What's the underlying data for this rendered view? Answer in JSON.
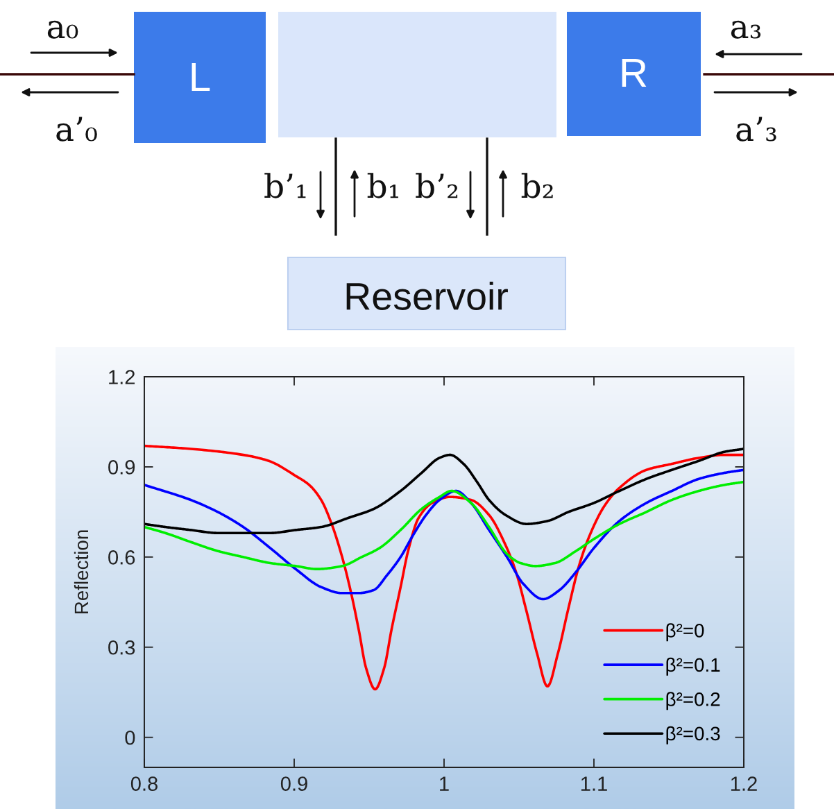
{
  "chart_data": [
    {
      "type": "other",
      "annotations": [
        "L",
        "R",
        "a₀",
        "a’₀",
        "a₃",
        "a’₃",
        "b’₁",
        "b₁",
        "b’₂",
        "b₂",
        "Reservoir"
      ]
    },
    {
      "type": "line",
      "ylabel": "Reflection",
      "xlim": [
        0.8,
        1.2
      ],
      "xticks": [
        0.8,
        0.9,
        1,
        1.1,
        1.2
      ],
      "ylim": [
        -0.1,
        1.2
      ],
      "yticks": [
        0,
        0.3,
        0.6,
        0.9,
        1.2
      ],
      "legend": "bottom right",
      "series": [
        {
          "name": "β²=0",
          "color": "#ff0000",
          "x": [
            0.8,
            0.831,
            0.866,
            0.883,
            0.901,
            0.91,
            0.918,
            0.925,
            0.932,
            0.938,
            0.943,
            0.948,
            0.954,
            0.96,
            0.965,
            0.971,
            0.976,
            0.983,
            0.992,
            1.004,
            1.018,
            1.03,
            1.041,
            1.048,
            1.055,
            1.062,
            1.069,
            1.076,
            1.083,
            1.09,
            1.097,
            1.107,
            1.117,
            1.135,
            1.152,
            1.17,
            1.187,
            1.2
          ],
          "values": [
            0.97,
            0.96,
            0.94,
            0.92,
            0.87,
            0.84,
            0.79,
            0.71,
            0.6,
            0.48,
            0.36,
            0.23,
            0.16,
            0.23,
            0.36,
            0.5,
            0.62,
            0.73,
            0.78,
            0.8,
            0.79,
            0.74,
            0.64,
            0.55,
            0.42,
            0.28,
            0.17,
            0.28,
            0.43,
            0.57,
            0.67,
            0.77,
            0.83,
            0.89,
            0.91,
            0.93,
            0.94,
            0.94
          ]
        },
        {
          "name": "β²=0.1",
          "color": "#0000ff",
          "x": [
            0.8,
            0.831,
            0.849,
            0.866,
            0.884,
            0.901,
            0.918,
            0.932,
            0.943,
            0.953,
            0.962,
            0.971,
            0.979,
            0.988,
            0.997,
            1.008,
            1.018,
            1.03,
            1.042,
            1.053,
            1.066,
            1.077,
            1.088,
            1.1,
            1.117,
            1.135,
            1.152,
            1.17,
            1.187,
            1.2
          ],
          "values": [
            0.84,
            0.79,
            0.75,
            0.7,
            0.63,
            0.56,
            0.5,
            0.48,
            0.48,
            0.49,
            0.54,
            0.6,
            0.67,
            0.74,
            0.79,
            0.82,
            0.78,
            0.69,
            0.6,
            0.51,
            0.46,
            0.49,
            0.55,
            0.63,
            0.72,
            0.78,
            0.82,
            0.86,
            0.88,
            0.89
          ]
        },
        {
          "name": "β²=0.2",
          "color": "#00ee00",
          "x": [
            0.8,
            0.814,
            0.831,
            0.849,
            0.866,
            0.884,
            0.901,
            0.915,
            0.932,
            0.945,
            0.957,
            0.971,
            0.985,
            0.997,
            1.005,
            1.018,
            1.03,
            1.042,
            1.051,
            1.061,
            1.074,
            1.088,
            1.1,
            1.117,
            1.135,
            1.152,
            1.17,
            1.187,
            1.2
          ],
          "values": [
            0.7,
            0.68,
            0.65,
            0.62,
            0.6,
            0.58,
            0.57,
            0.56,
            0.57,
            0.6,
            0.63,
            0.69,
            0.76,
            0.8,
            0.82,
            0.78,
            0.7,
            0.61,
            0.58,
            0.57,
            0.58,
            0.62,
            0.66,
            0.71,
            0.75,
            0.79,
            0.82,
            0.84,
            0.85
          ]
        },
        {
          "name": "β²=0.3",
          "color": "#000000",
          "x": [
            0.8,
            0.814,
            0.831,
            0.849,
            0.866,
            0.884,
            0.901,
            0.918,
            0.936,
            0.953,
            0.971,
            0.985,
            0.997,
            1.004,
            1.013,
            1.022,
            1.03,
            1.041,
            1.055,
            1.069,
            1.083,
            1.1,
            1.117,
            1.135,
            1.152,
            1.17,
            1.187,
            1.2
          ],
          "values": [
            0.71,
            0.7,
            0.69,
            0.68,
            0.68,
            0.68,
            0.69,
            0.7,
            0.73,
            0.76,
            0.82,
            0.88,
            0.93,
            0.94,
            0.91,
            0.85,
            0.79,
            0.74,
            0.71,
            0.72,
            0.75,
            0.78,
            0.82,
            0.86,
            0.89,
            0.92,
            0.95,
            0.96
          ]
        }
      ]
    }
  ]
}
